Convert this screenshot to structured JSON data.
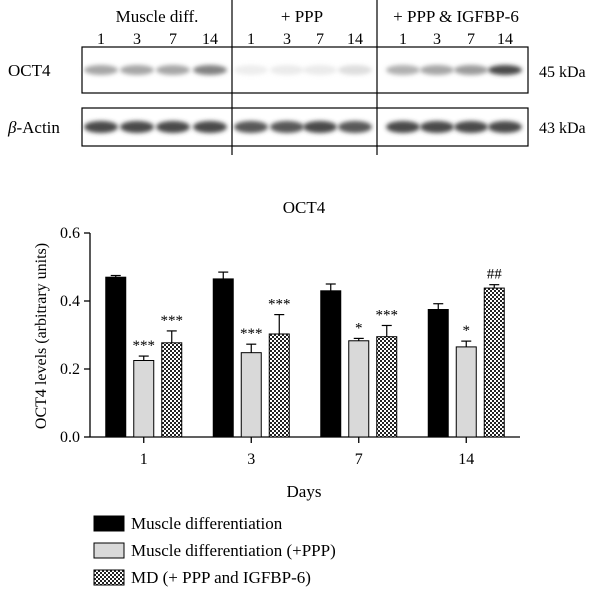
{
  "blot": {
    "groups": [
      {
        "name": "Muscle diff.",
        "days": [
          "1",
          "3",
          "7",
          "14"
        ]
      },
      {
        "name": "+ PPP",
        "days": [
          "1",
          "3",
          "7",
          "14"
        ]
      },
      {
        "name": "+ PPP & IGFBP-6",
        "days": [
          "1",
          "3",
          "7",
          "14"
        ]
      }
    ],
    "rows": [
      {
        "label": "OCT4",
        "size": "45 kDa",
        "intensity": [
          0.55,
          0.55,
          0.55,
          0.7,
          0.12,
          0.15,
          0.15,
          0.25,
          0.5,
          0.55,
          0.6,
          0.9
        ]
      },
      {
        "label_prefix": "β",
        "label_suffix": "-Actin",
        "size": "43 kDa",
        "intensity": [
          0.9,
          0.9,
          0.9,
          0.9,
          0.85,
          0.85,
          0.9,
          0.85,
          0.9,
          0.9,
          0.9,
          0.9
        ]
      }
    ]
  },
  "chart_data": {
    "type": "bar",
    "title": "OCT4",
    "xlabel": "Days",
    "ylabel": "OCT4 levels (arbitrary units)",
    "ylim": [
      0,
      0.6
    ],
    "yticks": [
      "0.0",
      "0.2",
      "0.4",
      "0.6"
    ],
    "categories": [
      "1",
      "3",
      "7",
      "14"
    ],
    "series": [
      {
        "name": "Muscle differentiation",
        "fill": "#000000",
        "values": [
          0.47,
          0.465,
          0.43,
          0.375
        ],
        "errors": [
          0.005,
          0.02,
          0.02,
          0.017
        ],
        "annotations": [
          "",
          "",
          "",
          ""
        ]
      },
      {
        "name": "Muscle differentiation (+PPP)",
        "fill": "#d9d9d9",
        "values": [
          0.225,
          0.248,
          0.283,
          0.265
        ],
        "errors": [
          0.013,
          0.025,
          0.007,
          0.017
        ],
        "annotations": [
          "***",
          "***",
          "*",
          "*"
        ]
      },
      {
        "name": "MD (+ PPP and IGFBP-6)",
        "fill": "checker",
        "values": [
          0.277,
          0.303,
          0.295,
          0.438
        ],
        "errors": [
          0.035,
          0.057,
          0.033,
          0.01
        ],
        "annotations": [
          "***",
          "***",
          "***",
          "##"
        ]
      }
    ],
    "legend_position": "bottom-left"
  }
}
